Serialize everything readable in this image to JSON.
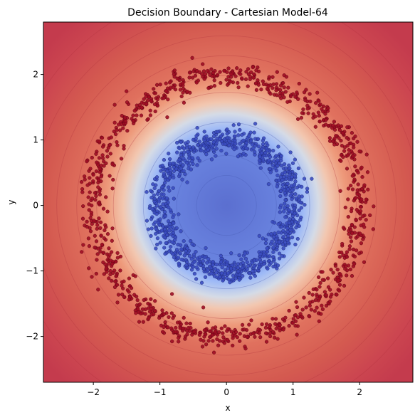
{
  "chart_data": {
    "type": "scatter",
    "subtype": "decision-boundary-contour",
    "title": "Decision Boundary - Cartesian Model-64",
    "xlabel": "x",
    "ylabel": "y",
    "xlim": [
      -2.75,
      2.8
    ],
    "ylim": [
      -2.7,
      2.8
    ],
    "xticks": [
      -2,
      -1,
      0,
      1,
      2
    ],
    "yticks": [
      -2,
      -1,
      0,
      1,
      2
    ],
    "xtick_labels": [
      "−2",
      "−1",
      "0",
      "1",
      "2"
    ],
    "ytick_labels": [
      "−2",
      "−1",
      "0",
      "1",
      "2"
    ],
    "grid": false,
    "legend": "none",
    "colormap": "coolwarm",
    "colors": {
      "inner_class": "#3b4cc0",
      "outer_class": "#9e0d24",
      "low_region": "#5a6fcf",
      "high_region": "#cc3d4a"
    },
    "series": [
      {
        "class": 0,
        "shape": "ring",
        "center": [
          0,
          0
        ],
        "radius_mean": 1.0,
        "radius_spread": 0.1,
        "count": 1000
      },
      {
        "class": 1,
        "shape": "ring",
        "center": [
          0,
          0
        ],
        "radius_mean": 2.0,
        "radius_spread": 0.1,
        "count": 1000
      }
    ],
    "boundary": {
      "shape": "circle",
      "center": [
        0,
        0
      ],
      "radius": 1.5
    }
  }
}
